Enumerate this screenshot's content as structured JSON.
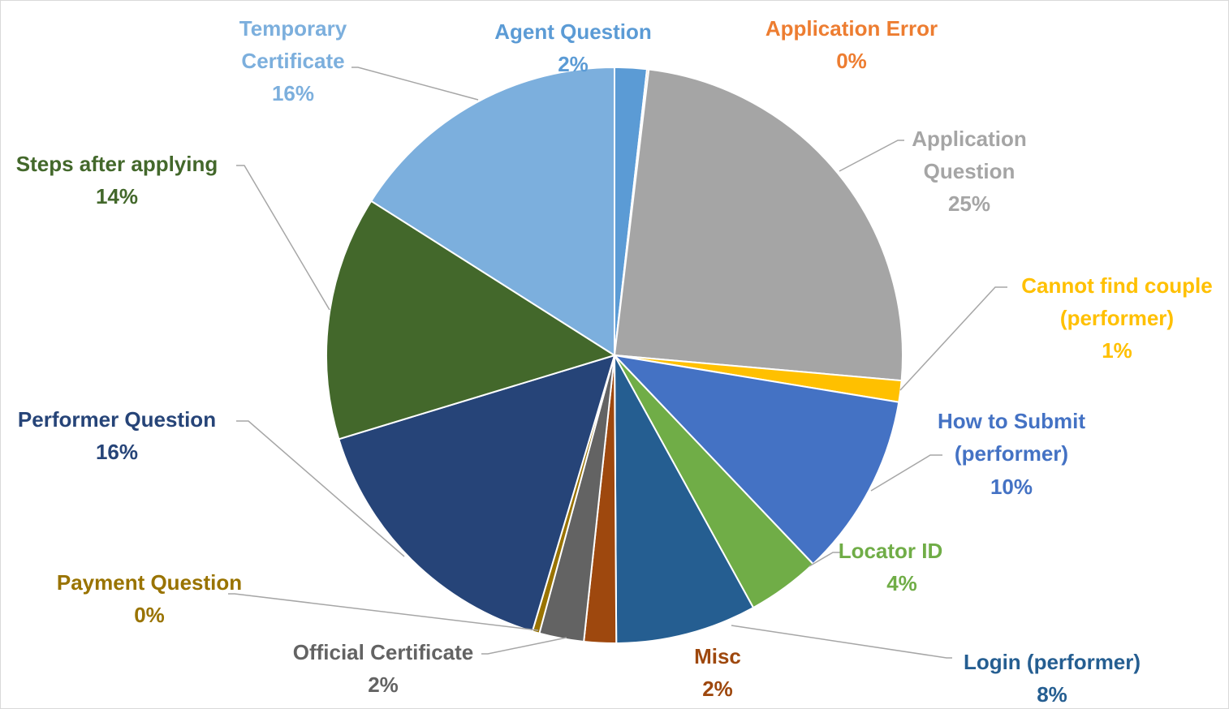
{
  "chart_data": {
    "type": "pie",
    "legend": "none",
    "slices": [
      {
        "name": "Agent Question",
        "pct_label": "2%",
        "value": 1.8,
        "color": "#5b9bd5"
      },
      {
        "name": "Application Error",
        "pct_label": "0%",
        "value": 0.1,
        "color": "#ed7d31"
      },
      {
        "name": "Application Question",
        "pct_label": "25%",
        "value": 24.5,
        "color": "#a5a5a5"
      },
      {
        "name": "Cannot find couple (performer)",
        "pct_label": "1%",
        "value": 1.2,
        "color": "#ffc000"
      },
      {
        "name": "How to Submit (performer)",
        "pct_label": "10%",
        "value": 10.3,
        "color": "#4472c4"
      },
      {
        "name": "Locator ID",
        "pct_label": "4%",
        "value": 4.1,
        "color": "#70ad47"
      },
      {
        "name": "Login (performer)",
        "pct_label": "8%",
        "value": 7.9,
        "color": "#255e91"
      },
      {
        "name": "Misc",
        "pct_label": "2%",
        "value": 1.8,
        "color": "#9e480e"
      },
      {
        "name": "Official Certificate",
        "pct_label": "2%",
        "value": 2.5,
        "color": "#636363"
      },
      {
        "name": "Payment Question",
        "pct_label": "0%",
        "value": 0.4,
        "color": "#997300"
      },
      {
        "name": "Performer Question",
        "pct_label": "16%",
        "value": 15.7,
        "color": "#264478"
      },
      {
        "name": "Steps after applying",
        "pct_label": "14%",
        "value": 13.7,
        "color": "#43682b"
      },
      {
        "name": "Temporary Certificate",
        "pct_label": "16%",
        "value": 16.0,
        "color": "#7cafdd"
      }
    ]
  }
}
